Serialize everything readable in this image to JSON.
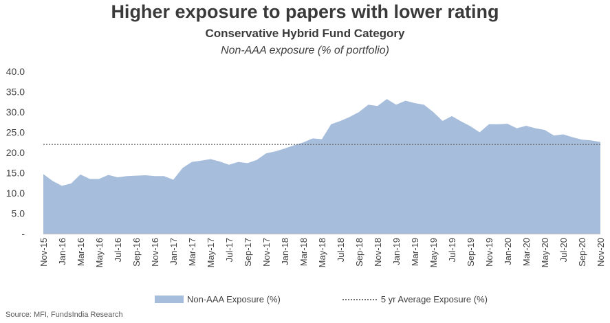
{
  "chart_data": {
    "type": "area",
    "title": "Higher exposure to papers with lower rating",
    "subtitle": "Conservative Hybrid Fund Category",
    "ylabel_note": "Non-AAA exposure (% of portfolio)",
    "ylim": [
      0,
      40
    ],
    "yticks": [
      "-",
      "5.0",
      "10.0",
      "15.0",
      "20.0",
      "25.0",
      "30.0",
      "35.0",
      "40.0"
    ],
    "ytick_values": [
      0,
      5,
      10,
      15,
      20,
      25,
      30,
      35,
      40
    ],
    "xtick_labels": [
      "Nov-15",
      "Jan-16",
      "Mar-16",
      "May-16",
      "Jul-16",
      "Sep-16",
      "Nov-16",
      "Jan-17",
      "Mar-17",
      "May-17",
      "Jul-17",
      "Sep-17",
      "Nov-17",
      "Jan-18",
      "Mar-18",
      "May-18",
      "Jul-18",
      "Sep-18",
      "Nov-18",
      "Jan-19",
      "Mar-19",
      "May-19",
      "Jul-19",
      "Sep-19",
      "Nov-19",
      "Jan-20",
      "Mar-20",
      "May-20",
      "Jul-20",
      "Sep-20",
      "Nov-20"
    ],
    "x": [
      "Nov-15",
      "Dec-15",
      "Jan-16",
      "Feb-16",
      "Mar-16",
      "Apr-16",
      "May-16",
      "Jun-16",
      "Jul-16",
      "Aug-16",
      "Sep-16",
      "Oct-16",
      "Nov-16",
      "Dec-16",
      "Jan-17",
      "Feb-17",
      "Mar-17",
      "Apr-17",
      "May-17",
      "Jun-17",
      "Jul-17",
      "Aug-17",
      "Sep-17",
      "Oct-17",
      "Nov-17",
      "Dec-17",
      "Jan-18",
      "Feb-18",
      "Mar-18",
      "Apr-18",
      "May-18",
      "Jun-18",
      "Jul-18",
      "Aug-18",
      "Sep-18",
      "Oct-18",
      "Nov-18",
      "Dec-18",
      "Jan-19",
      "Feb-19",
      "Mar-19",
      "Apr-19",
      "May-19",
      "Jun-19",
      "Jul-19",
      "Aug-19",
      "Sep-19",
      "Oct-19",
      "Nov-19",
      "Dec-19",
      "Jan-20",
      "Feb-20",
      "Mar-20",
      "Apr-20",
      "May-20",
      "Jun-20",
      "Jul-20",
      "Aug-20",
      "Sep-20",
      "Oct-20",
      "Nov-20"
    ],
    "series": [
      {
        "name": "Non-AAA Exposure (%)",
        "type": "area",
        "color": "#a6bddc",
        "values": [
          14.7,
          13.0,
          11.8,
          12.4,
          14.6,
          13.5,
          13.5,
          14.5,
          13.9,
          14.2,
          14.3,
          14.4,
          14.2,
          14.2,
          13.3,
          16.2,
          17.7,
          18.0,
          18.4,
          17.8,
          17.0,
          17.7,
          17.4,
          18.2,
          19.8,
          20.3,
          21.0,
          21.8,
          22.5,
          23.5,
          23.3,
          27.0,
          27.8,
          28.8,
          30.0,
          31.8,
          31.5,
          33.2,
          31.8,
          32.8,
          32.2,
          31.8,
          30.0,
          27.8,
          29.0,
          27.7,
          26.5,
          25.0,
          27.0,
          27.0,
          27.1,
          26.0,
          26.6,
          26.0,
          25.6,
          24.2,
          24.5,
          23.8,
          23.2,
          23.0,
          22.6
        ]
      },
      {
        "name": "5 yr Average Exposure (%)",
        "type": "line",
        "style": "dotted",
        "color": "#707070",
        "value": 22.0
      }
    ],
    "legend": "bottom"
  },
  "source": "Source: MFI, FundsIndia Research"
}
